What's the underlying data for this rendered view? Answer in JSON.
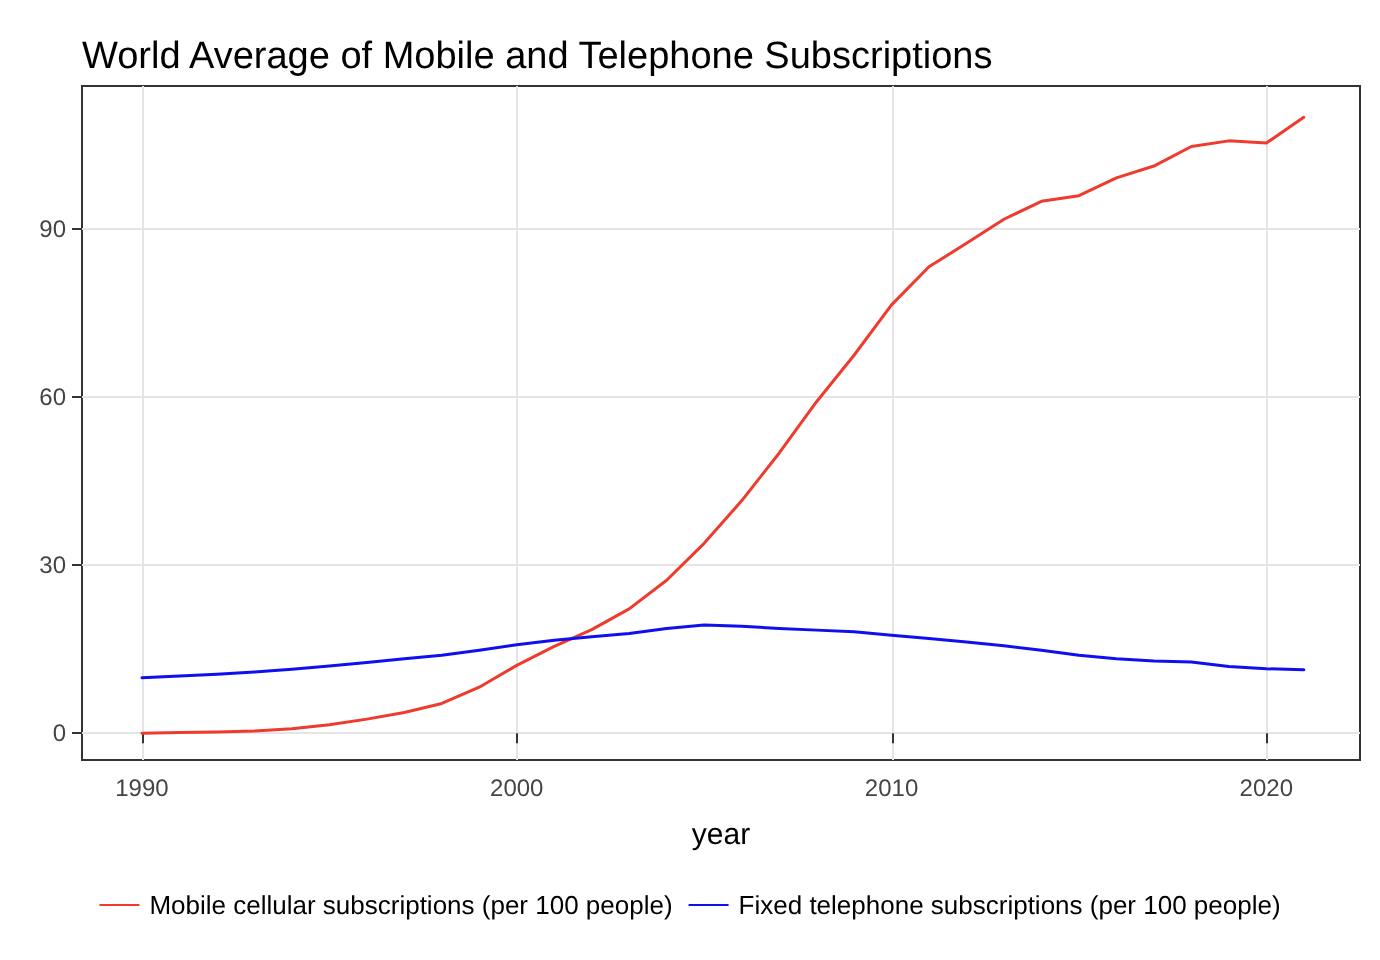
{
  "chart_data": {
    "type": "line",
    "title": "World Average of Mobile and Telephone Subscriptions",
    "xlabel": "year",
    "x": [
      1990,
      1991,
      1992,
      1993,
      1994,
      1995,
      1996,
      1997,
      1998,
      1999,
      2000,
      2001,
      2002,
      2003,
      2004,
      2005,
      2006,
      2007,
      2008,
      2009,
      2010,
      2011,
      2012,
      2013,
      2014,
      2015,
      2016,
      2017,
      2018,
      2019,
      2020,
      2021
    ],
    "series": [
      {
        "name": "Mobile cellular subscriptions (per 100 people)",
        "color": "#ee3b2e",
        "values": [
          0,
          0.1,
          0.2,
          0.4,
          0.8,
          1.5,
          2.5,
          3.7,
          5.3,
          8.2,
          12.1,
          15.5,
          18.5,
          22.2,
          27.3,
          33.9,
          41.5,
          50,
          59.2,
          67.5,
          76.5,
          83.3,
          87.5,
          91.8,
          95,
          96,
          99.2,
          101.3,
          104.8,
          105.8,
          105.4,
          110
        ]
      },
      {
        "name": "Fixed telephone subscriptions (per 100 people)",
        "color": "#1010ee",
        "values": [
          9.9,
          10.2,
          10.5,
          10.9,
          11.4,
          12,
          12.6,
          13.3,
          13.9,
          14.8,
          15.8,
          16.6,
          17.2,
          17.8,
          18.7,
          19.3,
          19.1,
          18.7,
          18.4,
          18.1,
          17.5,
          16.9,
          16.3,
          15.6,
          14.8,
          13.9,
          13.3,
          12.9,
          12.7,
          11.9,
          11.5,
          11.3
        ]
      }
    ],
    "xlim": [
      1988.4,
      2022.5
    ],
    "xticks": [
      1990,
      2000,
      2010,
      2020
    ],
    "ylim": [
      -4.8,
      115.6
    ],
    "yticks": [
      0,
      30,
      60,
      90
    ],
    "grid": true,
    "legend": "bottom",
    "marker": "none",
    "line_style": "solid"
  }
}
